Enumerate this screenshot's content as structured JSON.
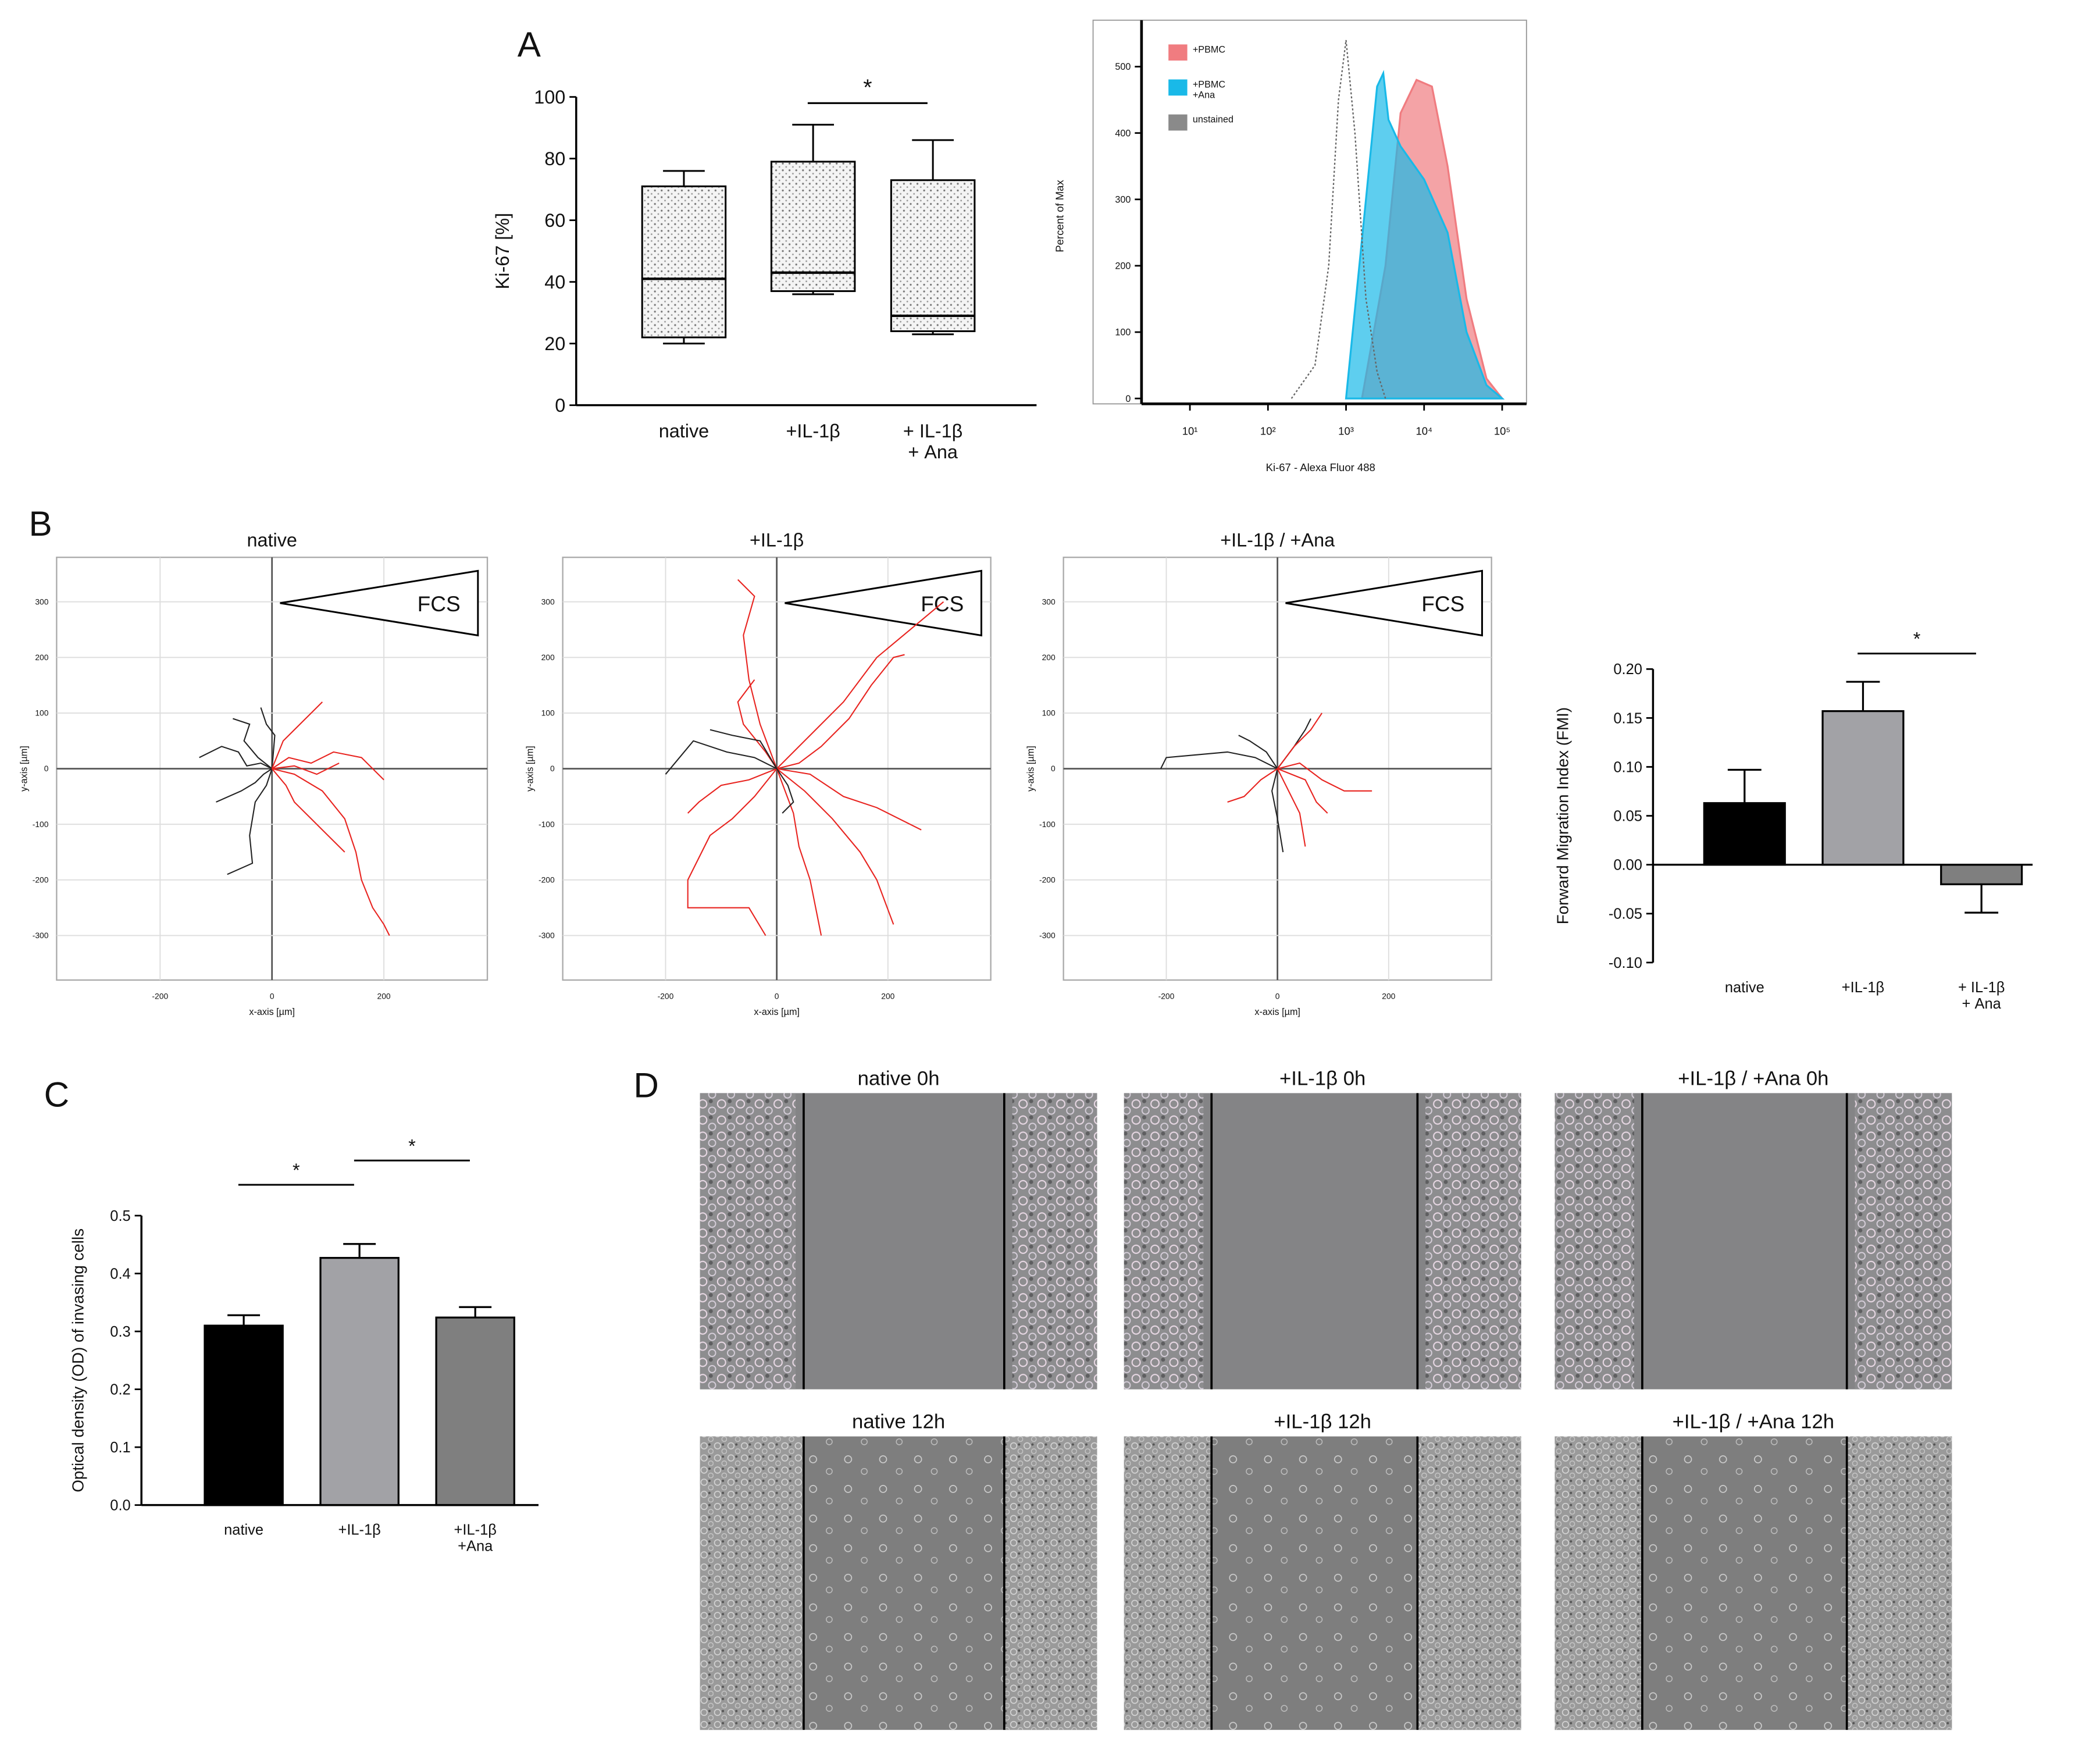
{
  "panel_labels": [
    "A",
    "B",
    "C",
    "D"
  ],
  "chart_data": [
    {
      "type": "box",
      "y_label": "Ki-67 [%]",
      "categories": [
        "native",
        "+IL-1β",
        "+ IL-1β\n+ Ana"
      ],
      "boxes": [
        {
          "min": 20,
          "q1": 22,
          "median": 41,
          "q3": 71,
          "max": 76
        },
        {
          "min": 36,
          "q1": 37,
          "median": 43,
          "q3": 79,
          "max": 91
        },
        {
          "min": 23,
          "q1": 24,
          "median": 29,
          "q3": 73,
          "max": 86
        }
      ],
      "ylim": [
        0,
        100
      ],
      "yticks": [
        0,
        20,
        40,
        60,
        80,
        100
      ],
      "significance": [
        {
          "label": "*",
          "between": [
            1,
            2
          ]
        }
      ]
    },
    {
      "type": "area",
      "x_label": "Ki-67 - Alexa Fluor 488",
      "y_label": "Percent of Max",
      "xscale": "log",
      "xlim": [
        2.4,
        205000
      ],
      "ylim": [
        0,
        570
      ],
      "xticks": [
        {
          "value": 10,
          "label": "10¹"
        },
        {
          "value": 100,
          "label": "10²"
        },
        {
          "value": 1000,
          "label": "10³"
        },
        {
          "value": 10000,
          "label": "10⁴"
        },
        {
          "value": 100000,
          "label": "10⁵"
        }
      ],
      "yticks": [
        0,
        100,
        200,
        300,
        400,
        500
      ],
      "legend": "upper left",
      "series": [
        {
          "name": "+PBMC",
          "color": "#f07c80",
          "line_style": "solid",
          "x": [
            1600,
            3200,
            5000,
            8000,
            12600,
            20000,
            35000,
            63000,
            100000
          ],
          "values": [
            0,
            200,
            430,
            480,
            470,
            350,
            150,
            30,
            0
          ]
        },
        {
          "name": "+PBMC\n+Ana",
          "color": "#19b9e8",
          "line_style": "solid",
          "x": [
            1000,
            1800,
            2500,
            3000,
            3500,
            5000,
            10000,
            20000,
            35000,
            63000,
            100000
          ],
          "values": [
            0,
            300,
            470,
            490,
            420,
            380,
            330,
            250,
            100,
            20,
            0
          ]
        },
        {
          "name": "unstained",
          "color": "#8a8a8a",
          "line_style": "dotted",
          "x": [
            200,
            400,
            600,
            800,
            1000,
            1300,
            1800,
            2500,
            3200
          ],
          "values": [
            0,
            50,
            200,
            450,
            540,
            400,
            150,
            40,
            0
          ]
        }
      ]
    },
    {
      "type": "line",
      "title": "native",
      "annotation": "FCS",
      "x_label": "x-axis [µm]",
      "y_label": "y-axis [µm]",
      "xlim": [
        -385,
        385
      ],
      "ylim": [
        -380,
        380
      ],
      "xticks": [
        -200,
        0,
        200
      ],
      "yticks": [
        -300,
        -200,
        -100,
        0,
        100,
        200,
        300
      ],
      "grid": true,
      "series": [
        {
          "color": "#222222",
          "x": [
            0,
            -20,
            -45,
            -60,
            -90,
            -130
          ],
          "values": [
            0,
            10,
            5,
            30,
            40,
            20
          ]
        },
        {
          "color": "#222222",
          "x": [
            0,
            -10,
            -30,
            -40,
            -35,
            -80
          ],
          "values": [
            0,
            -30,
            -60,
            -120,
            -170,
            -190
          ]
        },
        {
          "color": "#222222",
          "x": [
            0,
            -25,
            -50,
            -40,
            -70
          ],
          "values": [
            0,
            20,
            50,
            80,
            90
          ]
        },
        {
          "color": "#222222",
          "x": [
            0,
            -15,
            -30,
            -55,
            -100
          ],
          "values": [
            0,
            -10,
            -25,
            -40,
            -60
          ]
        },
        {
          "color": "#222222",
          "x": [
            0,
            5,
            -10,
            -20
          ],
          "values": [
            0,
            60,
            80,
            110
          ]
        },
        {
          "color": "#e8231f",
          "x": [
            0,
            40,
            90,
            130,
            150,
            160,
            180,
            200,
            210
          ],
          "values": [
            0,
            -10,
            -40,
            -90,
            -150,
            -200,
            -250,
            -280,
            -300
          ]
        },
        {
          "color": "#e8231f",
          "x": [
            0,
            30,
            70,
            110,
            160,
            200
          ],
          "values": [
            0,
            20,
            10,
            30,
            20,
            -20
          ]
        },
        {
          "color": "#e8231f",
          "x": [
            0,
            20,
            50,
            70,
            90
          ],
          "values": [
            0,
            50,
            80,
            100,
            120
          ]
        },
        {
          "color": "#e8231f",
          "x": [
            0,
            25,
            40,
            70,
            100,
            130
          ],
          "values": [
            0,
            -30,
            -60,
            -90,
            -120,
            -150
          ]
        },
        {
          "color": "#e8231f",
          "x": [
            0,
            40,
            80,
            120
          ],
          "values": [
            0,
            5,
            -10,
            10
          ]
        }
      ]
    },
    {
      "type": "line",
      "title": "+IL-1β",
      "annotation": "FCS",
      "x_label": "x-axis [µm]",
      "y_label": "y-axis [µm]",
      "xlim": [
        -385,
        385
      ],
      "ylim": [
        -380,
        380
      ],
      "xticks": [
        -200,
        0,
        200
      ],
      "yticks": [
        -300,
        -200,
        -100,
        0,
        100,
        200,
        300
      ],
      "grid": true,
      "series": [
        {
          "color": "#e8231f",
          "x": [
            0,
            -30,
            -50,
            -60,
            -40,
            -70
          ],
          "values": [
            0,
            80,
            160,
            240,
            310,
            340
          ]
        },
        {
          "color": "#e8231f",
          "x": [
            0,
            60,
            120,
            180,
            240,
            300
          ],
          "values": [
            0,
            60,
            120,
            200,
            250,
            300
          ]
        },
        {
          "color": "#e8231f",
          "x": [
            0,
            -40,
            -80,
            -120,
            -160,
            -160,
            -50,
            -20
          ],
          "values": [
            0,
            -50,
            -90,
            -120,
            -200,
            -250,
            -250,
            -300
          ]
        },
        {
          "color": "#e8231f",
          "x": [
            0,
            50,
            100,
            150,
            180,
            210
          ],
          "values": [
            0,
            -40,
            -90,
            -150,
            -200,
            -280
          ]
        },
        {
          "color": "#e8231f",
          "x": [
            0,
            40,
            80,
            130,
            170,
            210,
            230
          ],
          "values": [
            0,
            10,
            40,
            90,
            150,
            200,
            205
          ]
        },
        {
          "color": "#e8231f",
          "x": [
            0,
            60,
            120,
            180,
            220,
            260
          ],
          "values": [
            0,
            -10,
            -50,
            -70,
            -90,
            -110
          ]
        },
        {
          "color": "#e8231f",
          "x": [
            0,
            30,
            40,
            60,
            70,
            80
          ],
          "values": [
            0,
            -80,
            -140,
            -200,
            -250,
            -300
          ]
        },
        {
          "color": "#e8231f",
          "x": [
            0,
            -50,
            -100,
            -140,
            -160
          ],
          "values": [
            0,
            -20,
            -30,
            -60,
            -80
          ]
        },
        {
          "color": "#e8231f",
          "x": [
            0,
            -20,
            -60,
            -70,
            -40
          ],
          "values": [
            0,
            30,
            80,
            120,
            160
          ]
        },
        {
          "color": "#222222",
          "x": [
            0,
            -40,
            -90,
            -150,
            -200
          ],
          "values": [
            0,
            20,
            30,
            50,
            -10
          ]
        },
        {
          "color": "#222222",
          "x": [
            0,
            -30,
            -80,
            -120
          ],
          "values": [
            0,
            50,
            60,
            70
          ]
        },
        {
          "color": "#222222",
          "x": [
            0,
            20,
            30,
            10
          ],
          "values": [
            0,
            -30,
            -60,
            -80
          ]
        }
      ]
    },
    {
      "type": "line",
      "title": "+IL-1β / +Ana",
      "annotation": "FCS",
      "x_label": "x-axis [µm]",
      "y_label": "y-axis [µm]",
      "xlim": [
        -385,
        385
      ],
      "ylim": [
        -380,
        380
      ],
      "xticks": [
        -200,
        0,
        200
      ],
      "yticks": [
        -300,
        -200,
        -100,
        0,
        100,
        200,
        300
      ],
      "grid": true,
      "series": [
        {
          "color": "#222222",
          "x": [
            0,
            -40,
            -90,
            -200,
            -210
          ],
          "values": [
            0,
            20,
            30,
            20,
            0
          ]
        },
        {
          "color": "#222222",
          "x": [
            0,
            -20,
            -50,
            -70
          ],
          "values": [
            0,
            30,
            50,
            60
          ]
        },
        {
          "color": "#222222",
          "x": [
            0,
            -10,
            0,
            10
          ],
          "values": [
            0,
            -40,
            -90,
            -150
          ]
        },
        {
          "color": "#222222",
          "x": [
            0,
            30,
            50,
            60
          ],
          "values": [
            0,
            40,
            70,
            90
          ]
        },
        {
          "color": "#e8231f",
          "x": [
            0,
            40,
            80,
            120,
            170
          ],
          "values": [
            0,
            10,
            -20,
            -40,
            -40
          ]
        },
        {
          "color": "#e8231f",
          "x": [
            0,
            30,
            60,
            80
          ],
          "values": [
            0,
            40,
            70,
            100
          ]
        },
        {
          "color": "#e8231f",
          "x": [
            0,
            20,
            40,
            50
          ],
          "values": [
            0,
            -40,
            -80,
            -140
          ]
        },
        {
          "color": "#e8231f",
          "x": [
            0,
            -30,
            -60,
            -90
          ],
          "values": [
            0,
            -20,
            -50,
            -60
          ]
        },
        {
          "color": "#e8231f",
          "x": [
            0,
            50,
            70,
            90
          ],
          "values": [
            0,
            -20,
            -60,
            -80
          ]
        }
      ]
    },
    {
      "type": "bar",
      "y_label": "Forward Migration Index (FMI)",
      "categories": [
        "native",
        "+IL-1β",
        "+ IL-1β\n+ Ana"
      ],
      "values": [
        0.063,
        0.157,
        -0.02
      ],
      "errors": [
        0.034,
        0.03,
        0.029
      ],
      "colors": [
        "#000000",
        "#a2a2a6",
        "#7f7f7f"
      ],
      "ylim": [
        -0.1,
        0.2
      ],
      "yticks": [
        {
          "value": -0.1,
          "label": "-0.10"
        },
        {
          "value": -0.05,
          "label": "-0.05"
        },
        {
          "value": 0,
          "label": "0.00"
        },
        {
          "value": 0.05,
          "label": "0.05"
        },
        {
          "value": 0.1,
          "label": "0.10"
        },
        {
          "value": 0.15,
          "label": "0.15"
        },
        {
          "value": 0.2,
          "label": "0.20"
        }
      ],
      "significance": [
        {
          "label": "*",
          "between": [
            1,
            2
          ]
        }
      ]
    },
    {
      "type": "bar",
      "y_label": "Optical density (OD) of invasing cells",
      "categories": [
        "native",
        "+IL-1β",
        "+IL-1β\n+Ana"
      ],
      "values": [
        0.31,
        0.427,
        0.324
      ],
      "errors": [
        0.018,
        0.024,
        0.018
      ],
      "colors": [
        "#000000",
        "#a2a2a6",
        "#7f7f7f"
      ],
      "ylim": [
        0,
        0.5
      ],
      "yticks": [
        {
          "value": 0,
          "label": "0.0"
        },
        0.1,
        0.2,
        0.3,
        0.4,
        0.5
      ],
      "significance": [
        {
          "label": "*",
          "between": [
            0,
            1
          ]
        },
        {
          "label": "*",
          "between": [
            1,
            2
          ]
        }
      ]
    }
  ],
  "micrographs": {
    "titles": [
      "native 0h",
      "+IL-1β 0h",
      "+IL-1β / +Ana 0h",
      "native 12h",
      "+IL-1β 12h",
      "+IL-1β / +Ana 12h"
    ]
  }
}
